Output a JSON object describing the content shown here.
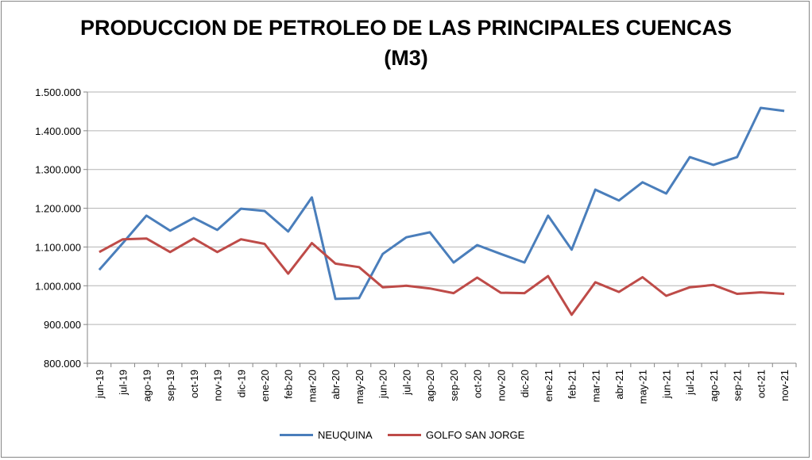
{
  "chart_data": {
    "type": "line",
    "title_line1": "PRODUCCION DE PETROLEO DE LAS PRINCIPALES CUENCAS",
    "title_line2": "(M3)",
    "xlabel": "",
    "ylabel": "",
    "ylim": [
      800000,
      1500000
    ],
    "yticks": [
      800000,
      900000,
      1000000,
      1100000,
      1200000,
      1300000,
      1400000,
      1500000
    ],
    "ytick_labels": [
      "800.000",
      "900.000",
      "1.000.000",
      "1.100.000",
      "1.200.000",
      "1.300.000",
      "1.400.000",
      "1.500.000"
    ],
    "grid": true,
    "legend_position": "bottom",
    "categories": [
      "jun-19",
      "jul-19",
      "ago-19",
      "sep-19",
      "oct-19",
      "nov-19",
      "dic-19",
      "ene-20",
      "feb-20",
      "mar-20",
      "abr-20",
      "may-20",
      "jun-20",
      "jul-20",
      "ago-20",
      "sep-20",
      "oct-20",
      "nov-20",
      "dic-20",
      "ene-21",
      "feb-21",
      "mar-21",
      "abr-21",
      "may-21",
      "jun-21",
      "jul-21",
      "ago-21",
      "sep-21",
      "oct-21",
      "nov-21"
    ],
    "series": [
      {
        "name": "NEUQUINA",
        "color": "#4a7ebb",
        "values": [
          1041000,
          1110000,
          1181000,
          1142000,
          1175000,
          1144000,
          1199000,
          1193000,
          1140000,
          1228000,
          966000,
          968000,
          1082000,
          1125000,
          1138000,
          1060000,
          1105000,
          1082000,
          1060000,
          1181000,
          1093000,
          1248000,
          1220000,
          1267000,
          1238000,
          1332000,
          1312000,
          1332000,
          1459000,
          1451000
        ]
      },
      {
        "name": "GOLFO SAN JORGE",
        "color": "#be4b48",
        "values": [
          1087000,
          1120000,
          1122000,
          1087000,
          1122000,
          1087000,
          1120000,
          1108000,
          1031000,
          1110000,
          1057000,
          1048000,
          996000,
          1000000,
          993000,
          981000,
          1021000,
          982000,
          981000,
          1025000,
          925000,
          1009000,
          984000,
          1022000,
          974000,
          996000,
          1002000,
          979000,
          983000,
          979000
        ]
      }
    ]
  }
}
